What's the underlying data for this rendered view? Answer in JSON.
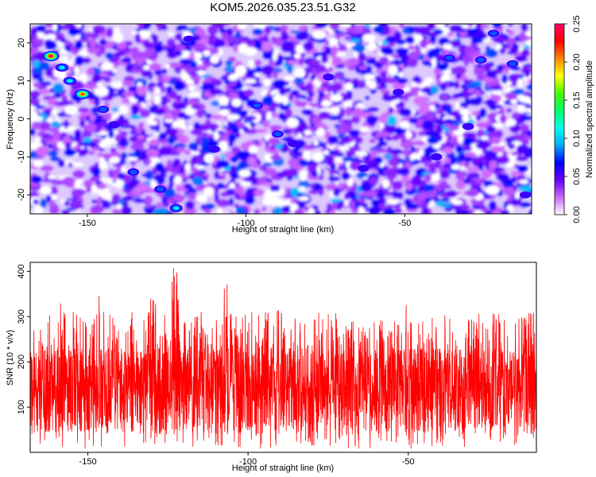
{
  "figure": {
    "title": "KOM5.2026.035.23.51.G32"
  },
  "chart_data": [
    {
      "type": "heatmap",
      "xlabel": "Height of straight line (km)",
      "ylabel": "Frequency (Hz)",
      "xlim": [
        -168,
        -10
      ],
      "ylim": [
        -25,
        25
      ],
      "xticks": [
        -150,
        -100,
        -50
      ],
      "yticks": [
        -20,
        -10,
        0,
        10,
        20
      ],
      "colorbar": {
        "label": "Normalized spectral amplitude",
        "range": [
          0.0,
          0.25
        ],
        "ticks": [
          "0.00",
          "0.05",
          "0.10",
          "0.15",
          "0.20",
          "0.25"
        ],
        "colormap": [
          "#ffffff",
          "#cc66ff",
          "#6600ff",
          "#0000ff",
          "#00aaff",
          "#00ffee",
          "#00ff66",
          "#44ff00",
          "#ffff00",
          "#ff8800",
          "#ff0000",
          "#ff0066"
        ]
      },
      "background_level": 0.03,
      "peaks": [
        {
          "x": -161.5,
          "y": 16.5,
          "value": 0.25
        },
        {
          "x": -151.5,
          "y": 6.5,
          "value": 0.24
        },
        {
          "x": -158.0,
          "y": 13.5,
          "value": 0.13
        },
        {
          "x": -155.5,
          "y": 10.0,
          "value": 0.12
        },
        {
          "x": -122.0,
          "y": -23.5,
          "value": 0.12
        },
        {
          "x": -127.0,
          "y": -18.5,
          "value": 0.09
        },
        {
          "x": -135.5,
          "y": -14.0,
          "value": 0.08
        },
        {
          "x": -145.0,
          "y": 2.5,
          "value": 0.08
        },
        {
          "x": -96.5,
          "y": 3.5,
          "value": 0.08
        },
        {
          "x": -90.0,
          "y": -4.0,
          "value": 0.08
        },
        {
          "x": -85.0,
          "y": -6.5,
          "value": 0.07
        },
        {
          "x": -36.0,
          "y": 16.0,
          "value": 0.08
        },
        {
          "x": -26.0,
          "y": 15.5,
          "value": 0.08
        },
        {
          "x": -16.0,
          "y": 14.5,
          "value": 0.08
        },
        {
          "x": -40.0,
          "y": -10.0,
          "value": 0.07
        },
        {
          "x": -30.0,
          "y": -2.0,
          "value": 0.07
        },
        {
          "x": -22.0,
          "y": 22.5,
          "value": 0.08
        },
        {
          "x": -141.5,
          "y": -1.5,
          "value": 0.07
        },
        {
          "x": -118.0,
          "y": 21.0,
          "value": 0.06
        },
        {
          "x": -63.0,
          "y": -13.0,
          "value": 0.06
        },
        {
          "x": -52.0,
          "y": 7.0,
          "value": 0.06
        },
        {
          "x": -12.0,
          "y": -20.0,
          "value": 0.06
        },
        {
          "x": -110.0,
          "y": -8.0,
          "value": 0.06
        },
        {
          "x": -74.0,
          "y": 11.0,
          "value": 0.06
        }
      ]
    },
    {
      "type": "line",
      "xlabel": "Height of straight line (km)",
      "ylabel": "SNR (10 * v/v)",
      "xlim": [
        -168,
        -10
      ],
      "ylim": [
        0,
        420
      ],
      "xticks": [
        -150,
        -100,
        -50
      ],
      "yticks": [
        100,
        200,
        300,
        400
      ],
      "line_color": "#ff0000",
      "series": [
        {
          "x_start": -168,
          "x_step": 4,
          "typical_range": [
            40,
            230
          ],
          "values": [
            150,
            120,
            330,
            280,
            240,
            380,
            260,
            300,
            250,
            340,
            290,
            410,
            320,
            260,
            300,
            380,
            260,
            250,
            290,
            330,
            280,
            260,
            310,
            300,
            280,
            290,
            260,
            300,
            270,
            330,
            250,
            210,
            200,
            270,
            300,
            280,
            230,
            240,
            240,
            250
          ]
        }
      ]
    }
  ]
}
